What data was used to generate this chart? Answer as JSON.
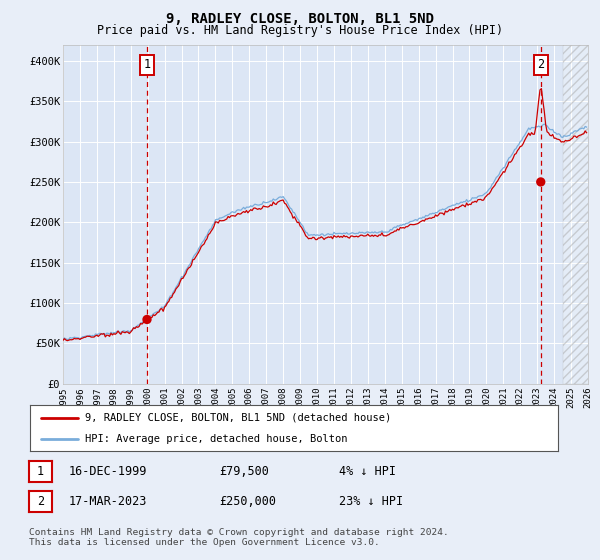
{
  "title": "9, RADLEY CLOSE, BOLTON, BL1 5ND",
  "subtitle": "Price paid vs. HM Land Registry's House Price Index (HPI)",
  "background_color": "#e8eef8",
  "plot_bg_color": "#dce6f5",
  "y_ticks": [
    0,
    50000,
    100000,
    150000,
    200000,
    250000,
    300000,
    350000,
    400000
  ],
  "y_tick_labels": [
    "£0",
    "£50K",
    "£100K",
    "£150K",
    "£200K",
    "£250K",
    "£300K",
    "£350K",
    "£400K"
  ],
  "ylim": [
    0,
    420000
  ],
  "sale1_price": 79500,
  "sale1_x": 1999.96,
  "sale2_price": 250000,
  "sale2_x": 2023.21,
  "hpi_line_color": "#7aaddb",
  "price_line_color": "#cc0000",
  "sale_dot_color": "#cc0000",
  "vline_color": "#cc0000",
  "annotation_box_color": "#cc0000",
  "footer_text": "Contains HM Land Registry data © Crown copyright and database right 2024.\nThis data is licensed under the Open Government Licence v3.0.",
  "legend_label1": "9, RADLEY CLOSE, BOLTON, BL1 5ND (detached house)",
  "legend_label2": "HPI: Average price, detached house, Bolton",
  "table_row1": [
    "1",
    "16-DEC-1999",
    "£79,500",
    "4% ↓ HPI"
  ],
  "table_row2": [
    "2",
    "17-MAR-2023",
    "£250,000",
    "23% ↓ HPI"
  ],
  "xmin": 1995,
  "xmax": 2026,
  "x_ticks": [
    1995,
    1996,
    1997,
    1998,
    1999,
    2000,
    2001,
    2002,
    2003,
    2004,
    2005,
    2006,
    2007,
    2008,
    2009,
    2010,
    2011,
    2012,
    2013,
    2014,
    2015,
    2016,
    2017,
    2018,
    2019,
    2020,
    2021,
    2022,
    2023,
    2024,
    2025,
    2026
  ]
}
